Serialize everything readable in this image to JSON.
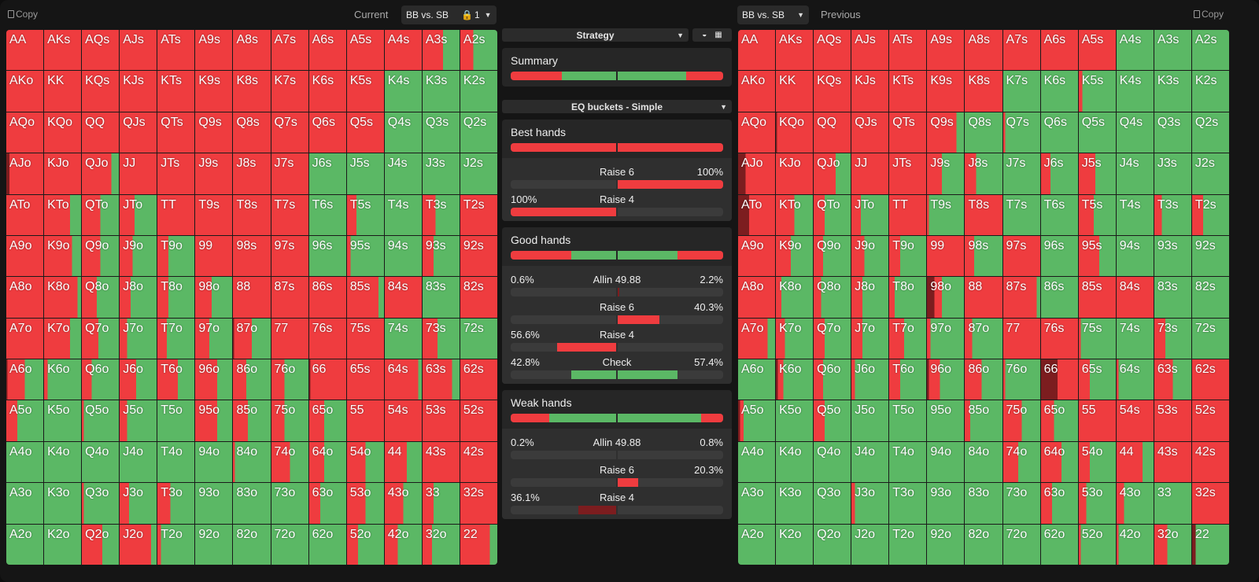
{
  "colors": {
    "red": "#ef3c3f",
    "green": "#5bb865",
    "dark": "#7c1d1f",
    "bg": "#151515"
  },
  "header": {
    "copy_left": "Copy",
    "current_label": "Current",
    "current_select": "BB vs. SB",
    "lock_icon": "lock-icon",
    "current_index": "1",
    "previous_select": "BB vs. SB",
    "previous_label": "Previous",
    "copy_right": "Copy"
  },
  "hands": [
    [
      "AA",
      "AKs",
      "AQs",
      "AJs",
      "ATs",
      "A9s",
      "A8s",
      "A7s",
      "A6s",
      "A5s",
      "A4s",
      "A3s",
      "A2s"
    ],
    [
      "AKo",
      "KK",
      "KQs",
      "KJs",
      "KTs",
      "K9s",
      "K8s",
      "K7s",
      "K6s",
      "K5s",
      "K4s",
      "K3s",
      "K2s"
    ],
    [
      "AQo",
      "KQo",
      "QQ",
      "QJs",
      "QTs",
      "Q9s",
      "Q8s",
      "Q7s",
      "Q6s",
      "Q5s",
      "Q4s",
      "Q3s",
      "Q2s"
    ],
    [
      "AJo",
      "KJo",
      "QJo",
      "JJ",
      "JTs",
      "J9s",
      "J8s",
      "J7s",
      "J6s",
      "J5s",
      "J4s",
      "J3s",
      "J2s"
    ],
    [
      "ATo",
      "KTo",
      "QTo",
      "JTo",
      "TT",
      "T9s",
      "T8s",
      "T7s",
      "T6s",
      "T5s",
      "T4s",
      "T3s",
      "T2s"
    ],
    [
      "A9o",
      "K9o",
      "Q9o",
      "J9o",
      "T9o",
      "99",
      "98s",
      "97s",
      "96s",
      "95s",
      "94s",
      "93s",
      "92s"
    ],
    [
      "A8o",
      "K8o",
      "Q8o",
      "J8o",
      "T8o",
      "98o",
      "88",
      "87s",
      "86s",
      "85s",
      "84s",
      "83s",
      "82s"
    ],
    [
      "A7o",
      "K7o",
      "Q7o",
      "J7o",
      "T7o",
      "97o",
      "87o",
      "77",
      "76s",
      "75s",
      "74s",
      "73s",
      "72s"
    ],
    [
      "A6o",
      "K6o",
      "Q6o",
      "J6o",
      "T6o",
      "96o",
      "86o",
      "76o",
      "66",
      "65s",
      "64s",
      "63s",
      "62s"
    ],
    [
      "A5o",
      "K5o",
      "Q5o",
      "J5o",
      "T5o",
      "95o",
      "85o",
      "75o",
      "65o",
      "55",
      "54s",
      "53s",
      "52s"
    ],
    [
      "A4o",
      "K4o",
      "Q4o",
      "J4o",
      "T4o",
      "94o",
      "84o",
      "74o",
      "64o",
      "54o",
      "44",
      "43s",
      "42s"
    ],
    [
      "A3o",
      "K3o",
      "Q3o",
      "J3o",
      "T3o",
      "93o",
      "83o",
      "73o",
      "63o",
      "53o",
      "43o",
      "33",
      "32s"
    ],
    [
      "A2o",
      "K2o",
      "Q2o",
      "J2o",
      "T2o",
      "92o",
      "82o",
      "72o",
      "62o",
      "52o",
      "42o",
      "32o",
      "22"
    ]
  ],
  "current_grid": {
    "raise_fraction": [
      [
        1,
        1,
        1,
        1,
        1,
        1,
        1,
        1,
        1,
        1,
        1,
        0.55,
        0.35
      ],
      [
        1,
        1,
        1,
        1,
        1,
        1,
        1,
        1,
        1,
        1,
        0,
        0,
        0
      ],
      [
        1,
        1,
        1,
        1,
        1,
        1,
        1,
        1,
        1,
        1,
        0,
        0,
        0
      ],
      [
        1,
        1,
        0.8,
        1,
        1,
        1,
        1,
        1,
        0,
        0,
        0,
        0,
        0
      ],
      [
        1,
        0.7,
        0.5,
        0.4,
        1,
        1,
        1,
        1,
        0,
        0.25,
        0,
        0.35,
        1
      ],
      [
        1,
        0.75,
        0.5,
        0.35,
        0.3,
        1,
        1,
        1,
        0,
        0.1,
        0,
        0.3,
        1
      ],
      [
        1,
        0.9,
        0.4,
        0.3,
        0.3,
        0.45,
        1,
        1,
        1,
        0.85,
        1,
        0,
        1
      ],
      [
        1,
        0.7,
        0.45,
        0.2,
        0.25,
        0.38,
        0.5,
        1,
        1,
        1,
        0,
        0.4,
        0
      ],
      [
        0.5,
        0.1,
        0.27,
        0.45,
        0.55,
        0.6,
        0.35,
        0.35,
        1,
        1,
        0.9,
        0.8,
        1
      ],
      [
        0.3,
        0,
        0.05,
        0.2,
        0,
        0.6,
        0.4,
        0.35,
        0.4,
        1,
        1,
        1,
        1
      ],
      [
        0,
        0,
        0,
        0,
        0,
        0,
        0.05,
        0.5,
        0.4,
        0.5,
        0.6,
        1,
        1
      ],
      [
        0,
        0,
        0.05,
        0.25,
        0.35,
        0,
        0,
        0,
        0.3,
        0.5,
        0.5,
        0.3,
        1
      ],
      [
        0,
        0,
        0.55,
        0.85,
        0.1,
        0,
        0,
        0,
        0,
        0.3,
        0.35,
        0.25,
        0.8
      ]
    ],
    "allin_fraction": {
      "AJo": 0.08,
      "A6o": 0.03,
      "87o": 0.03,
      "66": 0.03
    }
  },
  "previous_grid": {
    "raise_fraction": [
      [
        1,
        1,
        1,
        1,
        1,
        1,
        1,
        1,
        1,
        1,
        0,
        0,
        0
      ],
      [
        1,
        1,
        1,
        1,
        1,
        1,
        1,
        0,
        0,
        0.1,
        0,
        0,
        0
      ],
      [
        1,
        1,
        1,
        1,
        1,
        0.8,
        0,
        0.05,
        0,
        0,
        0,
        0,
        0
      ],
      [
        1,
        1,
        0.6,
        1,
        1,
        0.4,
        0.3,
        0,
        0.25,
        0.45,
        0,
        0,
        0
      ],
      [
        1,
        0.5,
        0.3,
        0.25,
        1,
        0.05,
        1,
        0,
        0,
        0.4,
        0,
        0.2,
        0.3
      ],
      [
        1,
        0.4,
        0.25,
        0.35,
        0.3,
        1,
        0.25,
        1,
        0,
        0.55,
        0,
        0,
        0
      ],
      [
        1,
        0.15,
        0.2,
        0.3,
        0.15,
        0.4,
        1,
        0.9,
        0,
        1,
        1,
        0,
        0
      ],
      [
        0.8,
        0.25,
        0.3,
        0.3,
        0.4,
        0.1,
        0.2,
        1,
        1,
        0.05,
        0,
        0.3,
        0
      ],
      [
        0,
        0.2,
        0.25,
        0.1,
        0.3,
        0.35,
        0.45,
        0.05,
        1,
        0.3,
        0.05,
        0.5,
        1
      ],
      [
        0.15,
        0,
        0.3,
        0,
        0,
        0,
        0.15,
        0.5,
        0.35,
        1,
        1,
        1,
        1
      ],
      [
        0,
        0,
        0,
        0,
        0,
        0,
        0,
        0.4,
        0.55,
        0.3,
        0.7,
        1,
        1
      ],
      [
        0,
        0,
        0,
        0.1,
        0,
        0,
        0,
        0,
        0.3,
        0.2,
        0.2,
        0,
        1
      ],
      [
        0,
        0,
        0,
        0,
        0,
        0,
        0,
        0,
        0,
        0.05,
        0.05,
        0.35,
        0.1
      ]
    ],
    "allin_fraction": {
      "AJo": 0.2,
      "ATo": 0.3,
      "KQo": 0.03,
      "66": 0.45,
      "98o": 0.2,
      "96o": 0.05,
      "22": 0.1,
      "K6o": 0.05,
      "A5o": 0.05
    }
  },
  "panel": {
    "strategy_select": "Strategy",
    "view_icons": [
      "contrast-icon",
      "grid-icon"
    ],
    "summary": {
      "title": "Summary",
      "left": {
        "green": 0.52,
        "red": 0.48
      },
      "right": {
        "green": 0.65,
        "red": 0.35
      }
    },
    "buckets_select": "EQ buckets - Simple",
    "buckets": [
      {
        "title": "Best hands",
        "left": {
          "green": 0,
          "red": 1
        },
        "right": {
          "green": 0,
          "red": 1
        },
        "actions": [
          {
            "label": "Raise  6",
            "left": "",
            "right": "100%",
            "left_value": 0,
            "right_value": 1,
            "color": "red"
          },
          {
            "label": "Raise  4",
            "left": "100%",
            "right": "",
            "left_value": 1,
            "right_value": 0,
            "color": "red"
          }
        ]
      },
      {
        "title": "Good hands",
        "left": {
          "green": 0.43,
          "red": 0.57
        },
        "right": {
          "green": 0.57,
          "red": 0.43
        },
        "actions": [
          {
            "label": "Allin  49.88",
            "left": "0.6%",
            "right": "2.2%",
            "left_value": 0.006,
            "right_value": 0.022,
            "color": "dark"
          },
          {
            "label": "Raise  6",
            "left": "",
            "right": "40.3%",
            "left_value": 0,
            "right_value": 0.403,
            "color": "red"
          },
          {
            "label": "Raise  4",
            "left": "56.6%",
            "right": "",
            "left_value": 0.566,
            "right_value": 0,
            "color": "red"
          },
          {
            "label": "Check",
            "left": "42.8%",
            "right": "57.4%",
            "left_value": 0.428,
            "right_value": 0.574,
            "color": "green"
          }
        ]
      },
      {
        "title": "Weak hands",
        "left": {
          "green": 0.64,
          "red": 0.36
        },
        "right": {
          "green": 0.79,
          "red": 0.21
        },
        "actions": [
          {
            "label": "Allin  49.88",
            "left": "0.2%",
            "right": "0.8%",
            "left_value": 0.002,
            "right_value": 0.008,
            "color": "dark"
          },
          {
            "label": "Raise  6",
            "left": "",
            "right": "20.3%",
            "left_value": 0,
            "right_value": 0.203,
            "color": "red"
          },
          {
            "label": "Raise  4",
            "left": "36.1%",
            "right": "",
            "left_value": 0.361,
            "right_value": 0,
            "color": "dark"
          }
        ]
      }
    ]
  }
}
